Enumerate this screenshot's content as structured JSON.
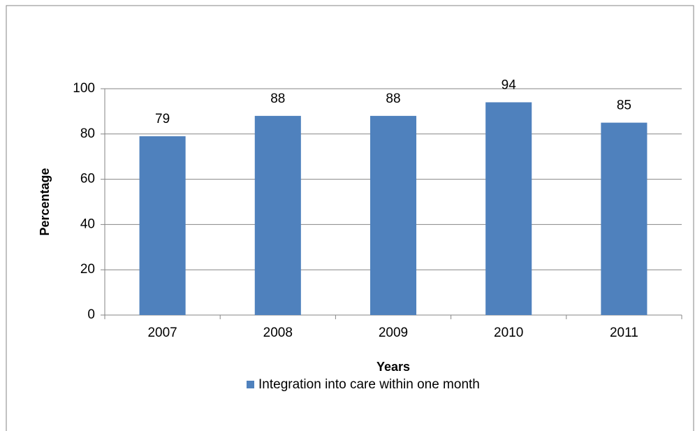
{
  "chart_data": {
    "type": "bar",
    "categories": [
      "2007",
      "2008",
      "2009",
      "2010",
      "2011"
    ],
    "series": [
      {
        "name": "Integration into care within one month",
        "color": "#4f81bd",
        "values": [
          79,
          88,
          88,
          94,
          85
        ]
      }
    ],
    "x_label": "Years",
    "y_label": "Percentage",
    "ylim": [
      0,
      100
    ],
    "yticks": [
      0,
      20,
      40,
      60,
      80,
      100
    ],
    "grid": true,
    "legend": "bottom"
  }
}
